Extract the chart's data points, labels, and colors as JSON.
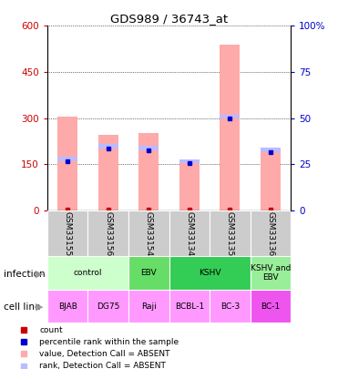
{
  "title": "GDS989 / 36743_at",
  "samples": [
    "GSM33155",
    "GSM33156",
    "GSM33154",
    "GSM33134",
    "GSM33135",
    "GSM33136"
  ],
  "bar_values": [
    305,
    245,
    250,
    160,
    540,
    205
  ],
  "rank_values": [
    160,
    200,
    195,
    155,
    300,
    190
  ],
  "rank_top_values": [
    175,
    215,
    210,
    165,
    310,
    205
  ],
  "ylim_left": [
    0,
    600
  ],
  "ylim_right": [
    0,
    100
  ],
  "yticks_left": [
    0,
    150,
    300,
    450,
    600
  ],
  "yticks_right": [
    0,
    25,
    50,
    75,
    100
  ],
  "ytick_labels_left": [
    "0",
    "150",
    "300",
    "450",
    "600"
  ],
  "ytick_labels_right": [
    "0",
    "25",
    "50",
    "75",
    "100%"
  ],
  "infection_groups": [
    {
      "label": "control",
      "span": [
        0,
        2
      ],
      "color": "#ccffcc"
    },
    {
      "label": "EBV",
      "span": [
        2,
        3
      ],
      "color": "#66dd66"
    },
    {
      "label": "KSHV",
      "span": [
        3,
        5
      ],
      "color": "#33cc55"
    },
    {
      "label": "KSHV and\nEBV",
      "span": [
        5,
        6
      ],
      "color": "#99ee99"
    }
  ],
  "cell_lines": [
    "BJAB",
    "DG75",
    "Raji",
    "BCBL-1",
    "BC-3",
    "BC-1"
  ],
  "cell_line_colors": [
    "#ff99ff",
    "#ff99ff",
    "#ff99ff",
    "#ff99ff",
    "#ff99ff",
    "#ee55ee"
  ],
  "bar_color_absent": "#ffaaaa",
  "rank_color_absent": "#bbbbff",
  "dot_color_count": "#cc0000",
  "dot_color_rank": "#0000cc",
  "sample_bg_color": "#cccccc",
  "left_label_color": "#cc0000",
  "right_label_color": "#0000cc"
}
